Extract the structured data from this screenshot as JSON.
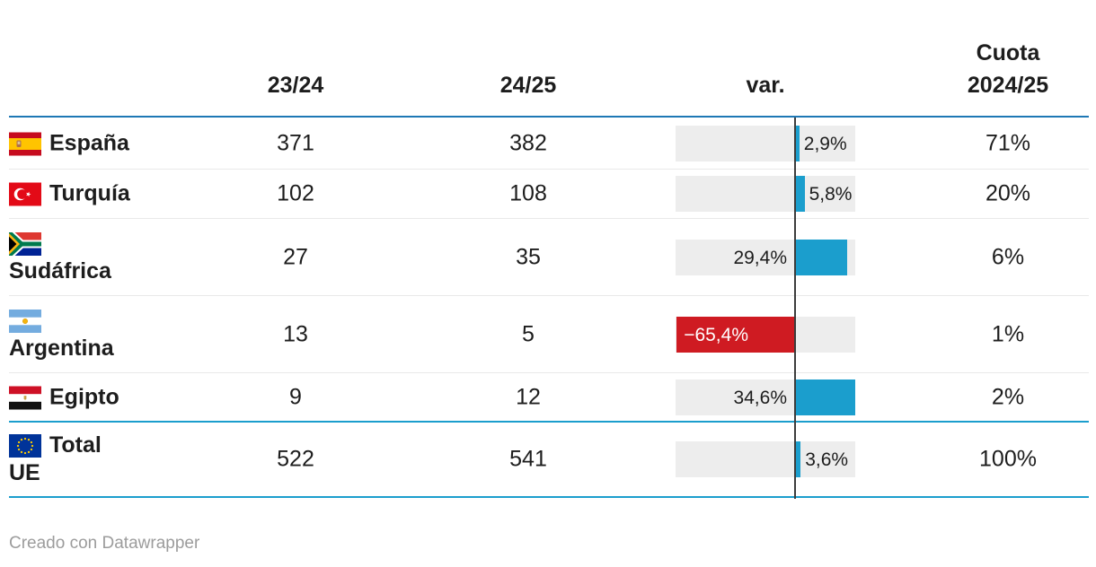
{
  "header": {
    "col_23_24": "23/24",
    "col_24_25": "24/25",
    "col_var": "var.",
    "col_cuota_line1": "Cuota",
    "col_cuota_line2": "2024/25"
  },
  "rows": [
    {
      "name": "España",
      "flag": "es",
      "label_lines": [
        "España"
      ],
      "v_23_24": "371",
      "v_24_25": "382",
      "var_label": "2,9%",
      "var_pct": 2.9,
      "cuota": "71%",
      "total": false
    },
    {
      "name": "Turquía",
      "flag": "tr",
      "label_lines": [
        "Turquía"
      ],
      "v_23_24": "102",
      "v_24_25": "108",
      "var_label": "5,8%",
      "var_pct": 5.8,
      "cuota": "20%",
      "total": false
    },
    {
      "name": "Sudáfrica",
      "flag": "za",
      "label_lines": [
        "",
        "Sudáfrica"
      ],
      "v_23_24": "27",
      "v_24_25": "35",
      "var_label": "29,4%",
      "var_pct": 29.4,
      "cuota": "6%",
      "total": false
    },
    {
      "name": "Argentina",
      "flag": "ar",
      "label_lines": [
        "",
        "Argentina"
      ],
      "v_23_24": "13",
      "v_24_25": "5",
      "var_label": "−65,4%",
      "var_pct": -65.4,
      "cuota": "1%",
      "total": false
    },
    {
      "name": "Egipto",
      "flag": "eg",
      "label_lines": [
        "Egipto"
      ],
      "v_23_24": "9",
      "v_24_25": "12",
      "var_label": "34,6%",
      "var_pct": 34.6,
      "cuota": "2%",
      "total": false
    },
    {
      "name": "Total UE",
      "flag": "eu",
      "label_lines": [
        "Total",
        "UE"
      ],
      "v_23_24": "522",
      "v_24_25": "541",
      "var_label": "3,6%",
      "var_pct": 3.6,
      "cuota": "100%",
      "total": true
    }
  ],
  "footer": {
    "credit": "Creado con Datawrapper"
  },
  "colors": {
    "bar_positive": "#1b9ecd",
    "bar_negative": "#cf1b22",
    "header_rule_blue": "#1e78b5",
    "total_line_cyan": "#1b9ecd",
    "axis_line": "#3c3c3c",
    "track_gray": "#ededed",
    "text": "#1d1d1d",
    "credit_gray": "#9c9c9c"
  },
  "chart_data": {
    "type": "table",
    "columns": [
      "",
      "23/24",
      "24/25",
      "var.",
      "Cuota 2024/25"
    ],
    "rows": [
      [
        "España",
        371,
        382,
        "2,9%",
        "71%"
      ],
      [
        "Turquía",
        102,
        108,
        "5,8%",
        "20%"
      ],
      [
        "Sudáfrica",
        27,
        35,
        "29,4%",
        "6%"
      ],
      [
        "Argentina",
        13,
        5,
        "−65,4%",
        "1%"
      ],
      [
        "Egipto",
        9,
        12,
        "34,6%",
        "2%"
      ],
      [
        "Total UE",
        522,
        541,
        "3,6%",
        "100%"
      ]
    ],
    "embedded_bar_column": {
      "type": "bar",
      "column": "var.",
      "values_pct": [
        2.9,
        5.8,
        29.4,
        -65.4,
        34.6,
        3.6
      ],
      "axis_range_pct": [
        -65.4,
        34.6
      ],
      "positive_color": "#1b9ecd",
      "negative_color": "#cf1b22"
    }
  }
}
